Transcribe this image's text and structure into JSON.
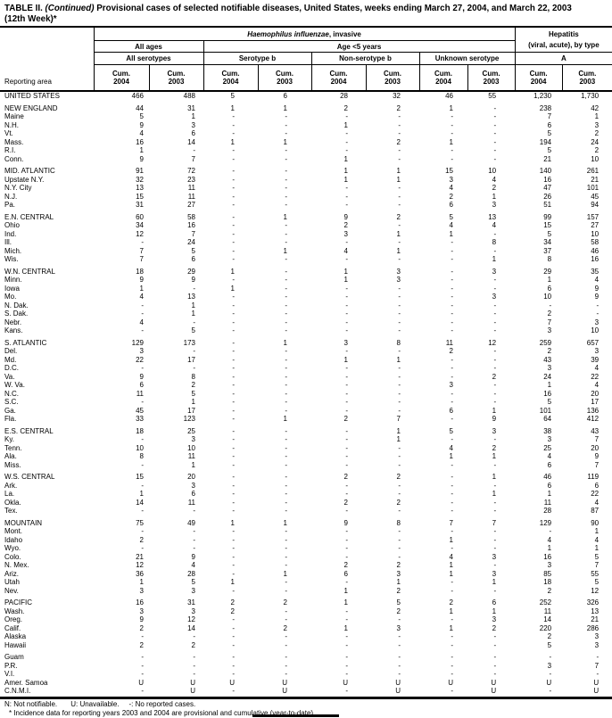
{
  "title": {
    "part1": "TABLE II. ",
    "continued": "(Continued)",
    "part2": " Provisional cases of selected notifiable diseases, United States, weeks ending March 27, 2004, and March 22, 2003",
    "line2": "(12th Week)*"
  },
  "header": {
    "reporting_area_label": "Reporting area",
    "disease_group_italic": "Haemophilus influenzae",
    "disease_group_suffix": ", invasive",
    "hepatitis_line1": "Hepatitis",
    "hepatitis_line2": "(viral, acute), by type",
    "all_ages_label": "All ages",
    "age_under5_label": "Age <5 years",
    "subgroups": [
      "All serotypes",
      "Serotype b",
      "Non-serotype b",
      "Unknown serotype",
      "A"
    ],
    "cum_label": "Cum.",
    "year_labels": [
      "2004",
      "2003",
      "2004",
      "2003",
      "2004",
      "2003",
      "2004",
      "2003",
      "2004",
      "2003"
    ]
  },
  "groups": [
    {
      "rows": [
        {
          "area": "UNITED STATES",
          "values": [
            "466",
            "488",
            "5",
            "6",
            "28",
            "32",
            "46",
            "55",
            "1,230",
            "1,730"
          ]
        }
      ]
    },
    {
      "rows": [
        {
          "area": "NEW ENGLAND",
          "values": [
            "44",
            "31",
            "1",
            "1",
            "2",
            "2",
            "1",
            "-",
            "238",
            "42"
          ]
        },
        {
          "area": "Maine",
          "values": [
            "5",
            "1",
            "-",
            "-",
            "-",
            "-",
            "-",
            "-",
            "7",
            "1"
          ]
        },
        {
          "area": "N.H.",
          "values": [
            "9",
            "3",
            "-",
            "-",
            "1",
            "-",
            "-",
            "-",
            "6",
            "3"
          ]
        },
        {
          "area": "Vt.",
          "values": [
            "4",
            "6",
            "-",
            "-",
            "-",
            "-",
            "-",
            "-",
            "5",
            "2"
          ]
        },
        {
          "area": "Mass.",
          "values": [
            "16",
            "14",
            "1",
            "1",
            "-",
            "2",
            "1",
            "-",
            "194",
            "24"
          ]
        },
        {
          "area": "R.I.",
          "values": [
            "1",
            "-",
            "-",
            "-",
            "-",
            "-",
            "-",
            "-",
            "5",
            "2"
          ]
        },
        {
          "area": "Conn.",
          "values": [
            "9",
            "7",
            "-",
            "-",
            "1",
            "-",
            "-",
            "-",
            "21",
            "10"
          ]
        }
      ]
    },
    {
      "rows": [
        {
          "area": "MID. ATLANTIC",
          "values": [
            "91",
            "72",
            "-",
            "-",
            "1",
            "1",
            "15",
            "10",
            "140",
            "261"
          ]
        },
        {
          "area": "Upstate N.Y.",
          "values": [
            "32",
            "23",
            "-",
            "-",
            "1",
            "1",
            "3",
            "4",
            "16",
            "21"
          ]
        },
        {
          "area": "N.Y. City",
          "values": [
            "13",
            "11",
            "-",
            "-",
            "-",
            "-",
            "4",
            "2",
            "47",
            "101"
          ]
        },
        {
          "area": "N.J.",
          "values": [
            "15",
            "11",
            "-",
            "-",
            "-",
            "-",
            "2",
            "1",
            "26",
            "45"
          ]
        },
        {
          "area": "Pa.",
          "values": [
            "31",
            "27",
            "-",
            "-",
            "-",
            "-",
            "6",
            "3",
            "51",
            "94"
          ]
        }
      ]
    },
    {
      "rows": [
        {
          "area": "E.N. CENTRAL",
          "values": [
            "60",
            "58",
            "-",
            "1",
            "9",
            "2",
            "5",
            "13",
            "99",
            "157"
          ]
        },
        {
          "area": "Ohio",
          "values": [
            "34",
            "16",
            "-",
            "-",
            "2",
            "-",
            "4",
            "4",
            "15",
            "27"
          ]
        },
        {
          "area": "Ind.",
          "values": [
            "12",
            "7",
            "-",
            "-",
            "3",
            "1",
            "1",
            "-",
            "5",
            "10"
          ]
        },
        {
          "area": "Ill.",
          "values": [
            "-",
            "24",
            "-",
            "-",
            "-",
            "-",
            "-",
            "8",
            "34",
            "58"
          ]
        },
        {
          "area": "Mich.",
          "values": [
            "7",
            "5",
            "-",
            "1",
            "4",
            "1",
            "-",
            "-",
            "37",
            "46"
          ]
        },
        {
          "area": "Wis.",
          "values": [
            "7",
            "6",
            "-",
            "-",
            "-",
            "-",
            "-",
            "1",
            "8",
            "16"
          ]
        }
      ]
    },
    {
      "rows": [
        {
          "area": "W.N. CENTRAL",
          "values": [
            "18",
            "29",
            "1",
            "-",
            "1",
            "3",
            "-",
            "3",
            "29",
            "35"
          ]
        },
        {
          "area": "Minn.",
          "values": [
            "9",
            "9",
            "-",
            "-",
            "1",
            "3",
            "-",
            "-",
            "1",
            "4"
          ]
        },
        {
          "area": "Iowa",
          "values": [
            "1",
            "-",
            "1",
            "-",
            "-",
            "-",
            "-",
            "-",
            "6",
            "9"
          ]
        },
        {
          "area": "Mo.",
          "values": [
            "4",
            "13",
            "-",
            "-",
            "-",
            "-",
            "-",
            "3",
            "10",
            "9"
          ]
        },
        {
          "area": "N. Dak.",
          "values": [
            "-",
            "1",
            "-",
            "-",
            "-",
            "-",
            "-",
            "-",
            "-",
            "-"
          ]
        },
        {
          "area": "S. Dak.",
          "values": [
            "-",
            "1",
            "-",
            "-",
            "-",
            "-",
            "-",
            "-",
            "2",
            "-"
          ]
        },
        {
          "area": "Nebr.",
          "values": [
            "4",
            "-",
            "-",
            "-",
            "-",
            "-",
            "-",
            "-",
            "7",
            "3"
          ]
        },
        {
          "area": "Kans.",
          "values": [
            "-",
            "5",
            "-",
            "-",
            "-",
            "-",
            "-",
            "-",
            "3",
            "10"
          ]
        }
      ]
    },
    {
      "rows": [
        {
          "area": "S. ATLANTIC",
          "values": [
            "129",
            "173",
            "-",
            "1",
            "3",
            "8",
            "11",
            "12",
            "259",
            "657"
          ]
        },
        {
          "area": "Del.",
          "values": [
            "3",
            "-",
            "-",
            "-",
            "-",
            "-",
            "2",
            "-",
            "2",
            "3"
          ]
        },
        {
          "area": "Md.",
          "values": [
            "22",
            "17",
            "-",
            "-",
            "1",
            "1",
            "-",
            "-",
            "43",
            "39"
          ]
        },
        {
          "area": "D.C.",
          "values": [
            "-",
            "-",
            "-",
            "-",
            "-",
            "-",
            "-",
            "-",
            "3",
            "4"
          ]
        },
        {
          "area": "Va.",
          "values": [
            "9",
            "8",
            "-",
            "-",
            "-",
            "-",
            "-",
            "2",
            "24",
            "22"
          ]
        },
        {
          "area": "W. Va.",
          "values": [
            "6",
            "2",
            "-",
            "-",
            "-",
            "-",
            "3",
            "-",
            "1",
            "4"
          ]
        },
        {
          "area": "N.C.",
          "values": [
            "11",
            "5",
            "-",
            "-",
            "-",
            "-",
            "-",
            "-",
            "16",
            "20"
          ]
        },
        {
          "area": "S.C.",
          "values": [
            "-",
            "1",
            "-",
            "-",
            "-",
            "-",
            "-",
            "-",
            "5",
            "17"
          ]
        },
        {
          "area": "Ga.",
          "values": [
            "45",
            "17",
            "-",
            "-",
            "-",
            "-",
            "6",
            "1",
            "101",
            "136"
          ]
        },
        {
          "area": "Fla.",
          "values": [
            "33",
            "123",
            "-",
            "1",
            "2",
            "7",
            "-",
            "9",
            "64",
            "412"
          ]
        }
      ]
    },
    {
      "rows": [
        {
          "area": "E.S. CENTRAL",
          "values": [
            "18",
            "25",
            "-",
            "-",
            "-",
            "1",
            "5",
            "3",
            "38",
            "43"
          ]
        },
        {
          "area": "Ky.",
          "values": [
            "-",
            "3",
            "-",
            "-",
            "-",
            "1",
            "-",
            "-",
            "3",
            "7"
          ]
        },
        {
          "area": "Tenn.",
          "values": [
            "10",
            "10",
            "-",
            "-",
            "-",
            "-",
            "4",
            "2",
            "25",
            "20"
          ]
        },
        {
          "area": "Ala.",
          "values": [
            "8",
            "11",
            "-",
            "-",
            "-",
            "-",
            "1",
            "1",
            "4",
            "9"
          ]
        },
        {
          "area": "Miss.",
          "values": [
            "-",
            "1",
            "-",
            "-",
            "-",
            "-",
            "-",
            "-",
            "6",
            "7"
          ]
        }
      ]
    },
    {
      "rows": [
        {
          "area": "W.S. CENTRAL",
          "values": [
            "15",
            "20",
            "-",
            "-",
            "2",
            "2",
            "-",
            "1",
            "46",
            "119"
          ]
        },
        {
          "area": "Ark.",
          "values": [
            "-",
            "3",
            "-",
            "-",
            "-",
            "-",
            "-",
            "-",
            "6",
            "6"
          ]
        },
        {
          "area": "La.",
          "values": [
            "1",
            "6",
            "-",
            "-",
            "-",
            "-",
            "-",
            "1",
            "1",
            "22"
          ]
        },
        {
          "area": "Okla.",
          "values": [
            "14",
            "11",
            "-",
            "-",
            "2",
            "2",
            "-",
            "-",
            "11",
            "4"
          ]
        },
        {
          "area": "Tex.",
          "values": [
            "-",
            "-",
            "-",
            "-",
            "-",
            "-",
            "-",
            "-",
            "28",
            "87"
          ]
        }
      ]
    },
    {
      "rows": [
        {
          "area": "MOUNTAIN",
          "values": [
            "75",
            "49",
            "1",
            "1",
            "9",
            "8",
            "7",
            "7",
            "129",
            "90"
          ]
        },
        {
          "area": "Mont.",
          "values": [
            "-",
            "-",
            "-",
            "-",
            "-",
            "-",
            "-",
            "-",
            "-",
            "1"
          ]
        },
        {
          "area": "Idaho",
          "values": [
            "2",
            "-",
            "-",
            "-",
            "-",
            "-",
            "1",
            "-",
            "4",
            "4"
          ]
        },
        {
          "area": "Wyo.",
          "values": [
            "-",
            "-",
            "-",
            "-",
            "-",
            "-",
            "-",
            "-",
            "1",
            "1"
          ]
        },
        {
          "area": "Colo.",
          "values": [
            "21",
            "9",
            "-",
            "-",
            "-",
            "-",
            "4",
            "3",
            "16",
            "5"
          ]
        },
        {
          "area": "N. Mex.",
          "values": [
            "12",
            "4",
            "-",
            "-",
            "2",
            "2",
            "1",
            "-",
            "3",
            "7"
          ]
        },
        {
          "area": "Ariz.",
          "values": [
            "36",
            "28",
            "-",
            "1",
            "6",
            "3",
            "1",
            "3",
            "85",
            "55"
          ]
        },
        {
          "area": "Utah",
          "values": [
            "1",
            "5",
            "1",
            "-",
            "-",
            "1",
            "-",
            "1",
            "18",
            "5"
          ]
        },
        {
          "area": "Nev.",
          "values": [
            "3",
            "3",
            "-",
            "-",
            "1",
            "2",
            "-",
            "-",
            "2",
            "12"
          ]
        }
      ]
    },
    {
      "rows": [
        {
          "area": "PACIFIC",
          "values": [
            "16",
            "31",
            "2",
            "2",
            "1",
            "5",
            "2",
            "6",
            "252",
            "326"
          ]
        },
        {
          "area": "Wash.",
          "values": [
            "3",
            "3",
            "2",
            "-",
            "-",
            "2",
            "1",
            "1",
            "11",
            "13"
          ]
        },
        {
          "area": "Oreg.",
          "values": [
            "9",
            "12",
            "-",
            "-",
            "-",
            "-",
            "-",
            "3",
            "14",
            "21"
          ]
        },
        {
          "area": "Calif.",
          "values": [
            "2",
            "14",
            "-",
            "2",
            "1",
            "3",
            "1",
            "2",
            "220",
            "286"
          ]
        },
        {
          "area": "Alaska",
          "values": [
            "-",
            "-",
            "-",
            "-",
            "-",
            "-",
            "-",
            "-",
            "2",
            "3"
          ]
        },
        {
          "area": "Hawaii",
          "values": [
            "2",
            "2",
            "-",
            "-",
            "-",
            "-",
            "-",
            "-",
            "5",
            "3"
          ]
        }
      ]
    },
    {
      "rows": [
        {
          "area": "Guam",
          "values": [
            "-",
            "-",
            "-",
            "-",
            "-",
            "-",
            "-",
            "-",
            "-",
            "-"
          ]
        },
        {
          "area": "P.R.",
          "values": [
            "-",
            "-",
            "-",
            "-",
            "-",
            "-",
            "-",
            "-",
            "3",
            "7"
          ]
        },
        {
          "area": "V.I.",
          "values": [
            "-",
            "-",
            "-",
            "-",
            "-",
            "-",
            "-",
            "-",
            "-",
            "-"
          ]
        },
        {
          "area": "Amer. Samoa",
          "values": [
            "U",
            "U",
            "U",
            "U",
            "U",
            "U",
            "U",
            "U",
            "U",
            "U"
          ]
        },
        {
          "area": "C.N.M.I.",
          "values": [
            "-",
            "U",
            "-",
            "U",
            "-",
            "U",
            "-",
            "U",
            "-",
            "U"
          ]
        }
      ]
    }
  ],
  "footer": {
    "legend_n": "N: Not notifiable.",
    "legend_u": "U: Unavailable.",
    "legend_dash": "-: No reported cases.",
    "note": "* Incidence data for reporting years 2003 and 2004 are provisional and cumulative (year-to-date)."
  }
}
